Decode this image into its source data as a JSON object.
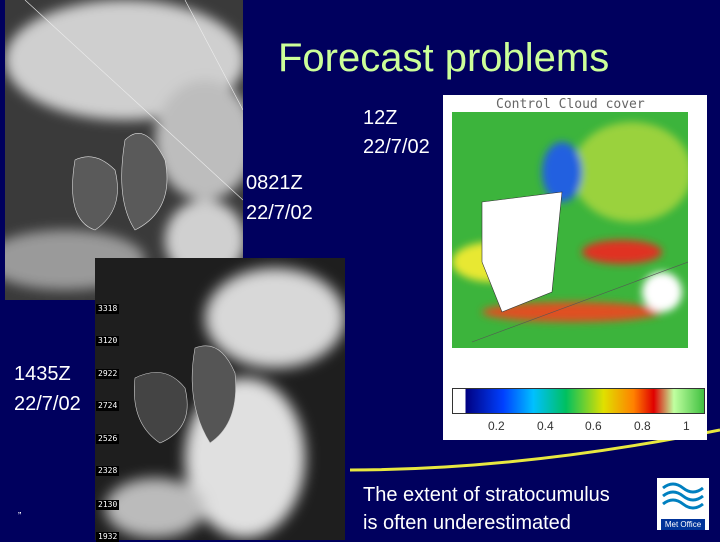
{
  "title": "Forecast problems",
  "model_panel": {
    "title": "Control Cloud cover",
    "time": "12Z",
    "date": "22/7/02",
    "colorbar_labels": [
      "0.2",
      "0.4",
      "0.6",
      "0.8",
      "1"
    ]
  },
  "satellite_1": {
    "time": "0821Z",
    "date": "22/7/02"
  },
  "satellite_2": {
    "time": "1435Z",
    "date": "22/7/02",
    "grid_labels": [
      "3318",
      "3120",
      "2922",
      "2724",
      "2526",
      "2328",
      "2130",
      "1932"
    ]
  },
  "caption": [
    "The extent of stratocumulus",
    "is often underestimated"
  ],
  "footer_mark": "”",
  "logo": "Met Office"
}
